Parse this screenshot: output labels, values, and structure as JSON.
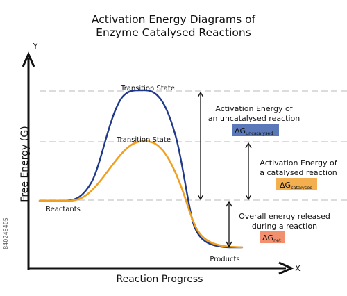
{
  "title": {
    "line1": "Activation Energy Diagrams of",
    "line2": "Enzyme Catalysed Reactions"
  },
  "axes": {
    "y_letter": "Y",
    "x_letter": "X",
    "y_label": "Free Energy (G)",
    "x_label": "Reaction Progress"
  },
  "labels": {
    "transition_uncatalysed": "Transition State",
    "transition_catalysed": "Transition State",
    "reactants": "Reactants",
    "products": "Products"
  },
  "notes": {
    "uncatalysed_line1": "Activation Energy of",
    "uncatalysed_line2": "an uncatalysed reaction",
    "catalysed_line1": "Activation Energy of",
    "catalysed_line2": "a catalysed reaction",
    "net_line1": "Overall energy released",
    "net_line2": "during a reaction"
  },
  "badges": {
    "uncatalysed": {
      "symbol": "ΔG",
      "sub": "uncatalysed",
      "color": "#5b79b8"
    },
    "catalysed": {
      "symbol": "ΔG",
      "sub": "catalysed",
      "color": "#f4b04f"
    },
    "net": {
      "symbol": "ΔG",
      "sub": "net",
      "color": "#f28f6e"
    }
  },
  "colors": {
    "uncatalysed_curve": "#1f3a8a",
    "catalysed_curve": "#f0a020",
    "dashed_line": "#c8c8c8",
    "arrow": "#111111"
  },
  "stock_id": "840246405"
}
